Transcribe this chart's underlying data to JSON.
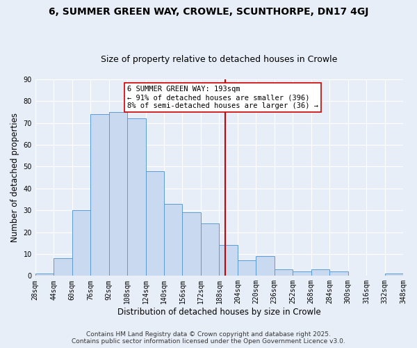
{
  "title": "6, SUMMER GREEN WAY, CROWLE, SCUNTHORPE, DN17 4GJ",
  "subtitle": "Size of property relative to detached houses in Crowle",
  "xlabel": "Distribution of detached houses by size in Crowle",
  "ylabel": "Number of detached properties",
  "bar_color": "#c8d9f0",
  "bar_edge_color": "#5b9bd5",
  "background_color": "#e8eef8",
  "grid_color": "#ffffff",
  "bin_edges": [
    28,
    44,
    60,
    76,
    92,
    108,
    124,
    140,
    156,
    172,
    188,
    204,
    220,
    236,
    252,
    268,
    284,
    300,
    316,
    332,
    348
  ],
  "bin_labels": [
    "28sqm",
    "44sqm",
    "60sqm",
    "76sqm",
    "92sqm",
    "108sqm",
    "124sqm",
    "140sqm",
    "156sqm",
    "172sqm",
    "188sqm",
    "204sqm",
    "220sqm",
    "236sqm",
    "252sqm",
    "268sqm",
    "284sqm",
    "300sqm",
    "316sqm",
    "332sqm",
    "348sqm"
  ],
  "counts": [
    1,
    8,
    30,
    74,
    75,
    72,
    48,
    33,
    29,
    24,
    14,
    7,
    9,
    3,
    2,
    3,
    2,
    0,
    0,
    1
  ],
  "vline_x": 193,
  "vline_color": "#cc0000",
  "annotation_text": "6 SUMMER GREEN WAY: 193sqm\n← 91% of detached houses are smaller (396)\n8% of semi-detached houses are larger (36) →",
  "annotation_box_color": "#ffffff",
  "annotation_box_edge": "#cc0000",
  "ylim": [
    0,
    90
  ],
  "yticks": [
    0,
    10,
    20,
    30,
    40,
    50,
    60,
    70,
    80,
    90
  ],
  "footer_line1": "Contains HM Land Registry data © Crown copyright and database right 2025.",
  "footer_line2": "Contains public sector information licensed under the Open Government Licence v3.0.",
  "title_fontsize": 10,
  "subtitle_fontsize": 9,
  "axis_label_fontsize": 8.5,
  "tick_fontsize": 7,
  "annotation_fontsize": 7.5,
  "footer_fontsize": 6.5
}
